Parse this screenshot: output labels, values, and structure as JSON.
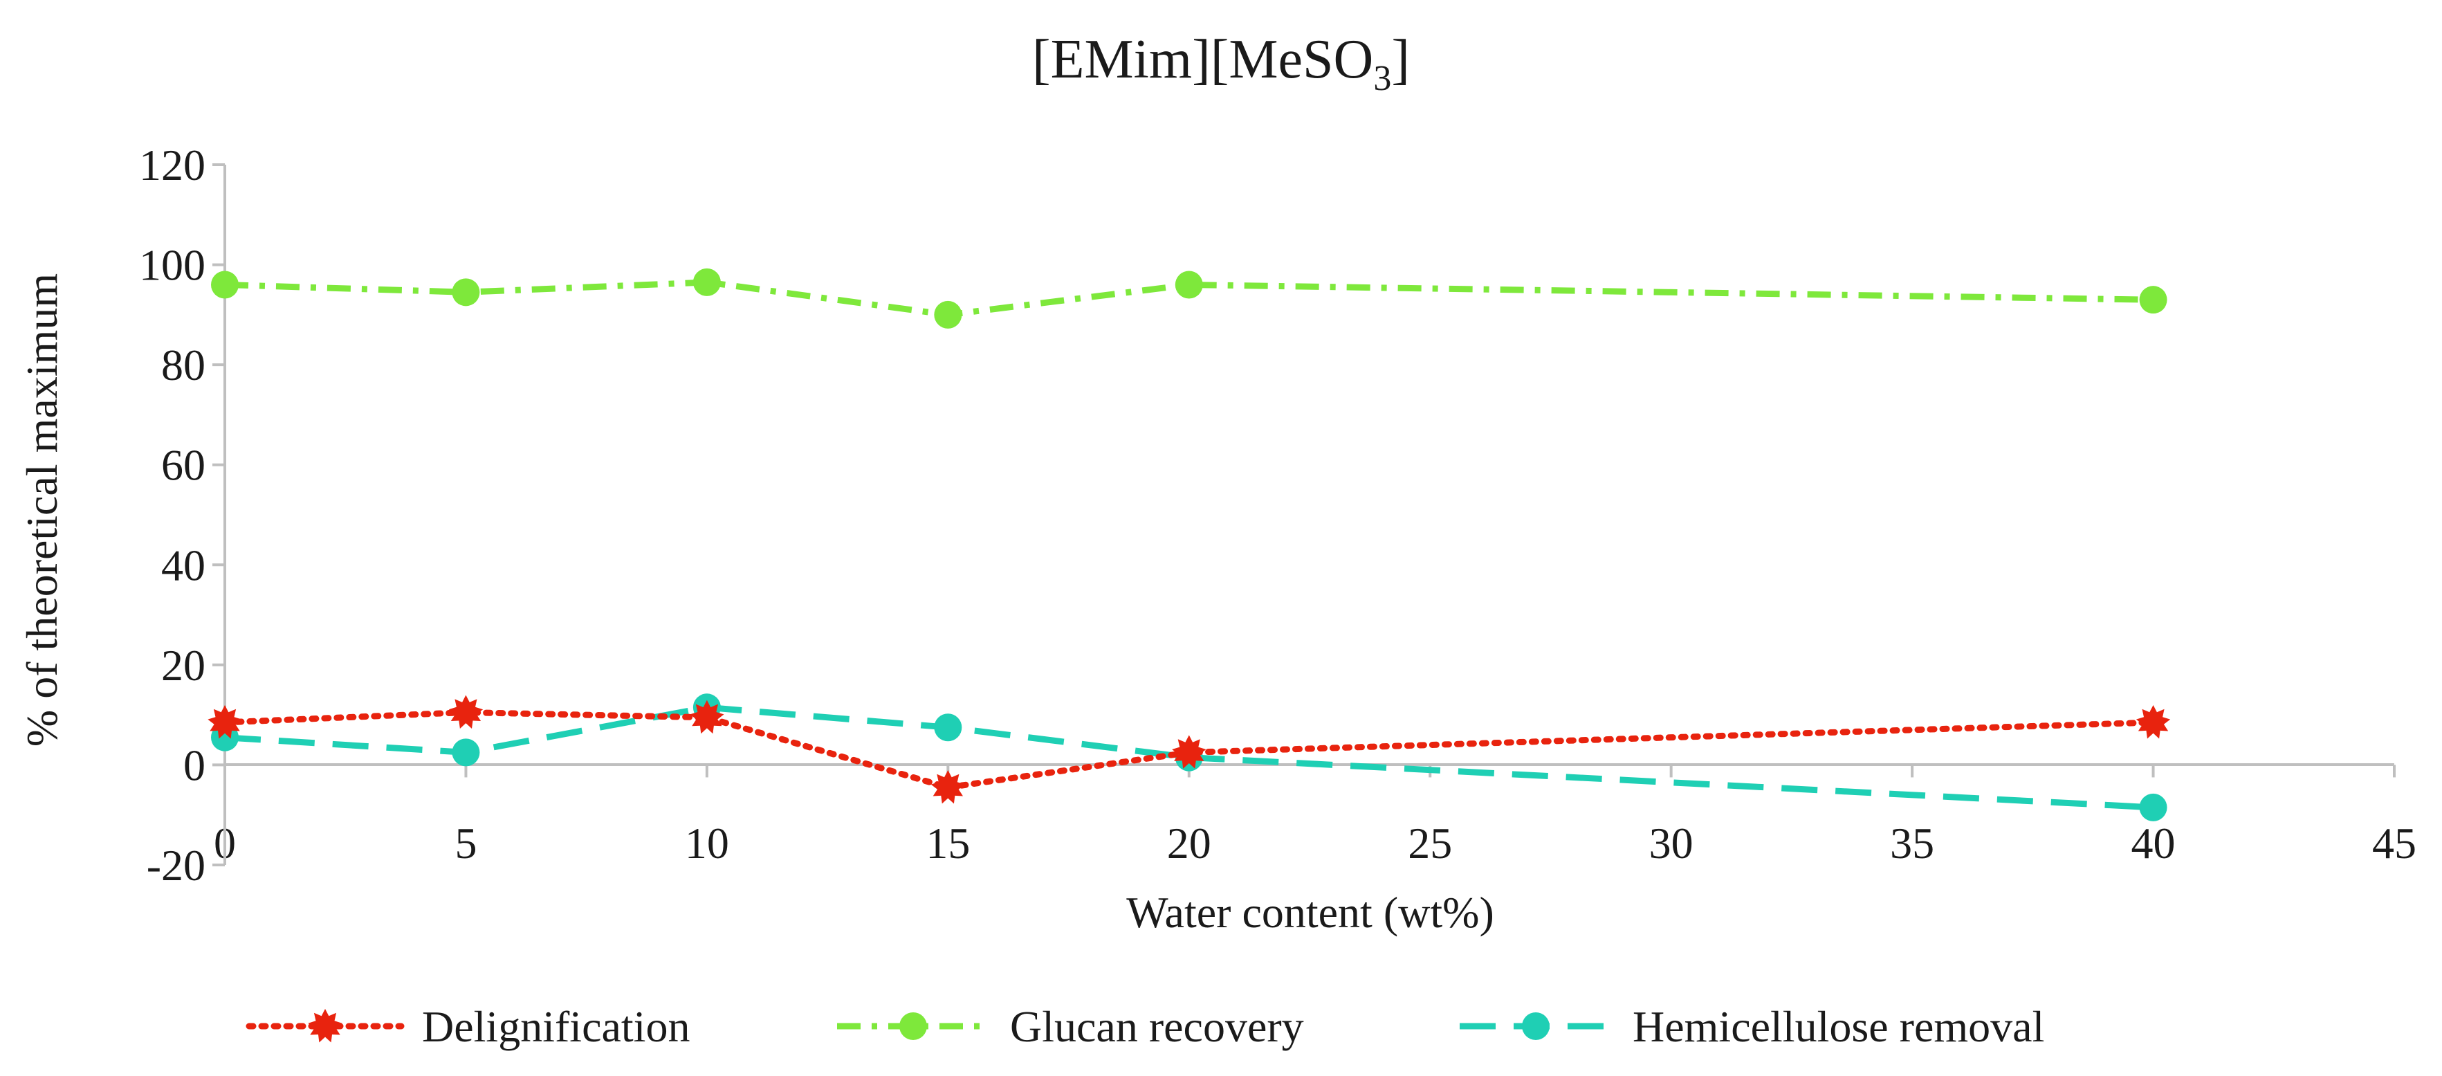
{
  "chart_data": {
    "type": "line",
    "title": "[EMim][MeSO",
    "title_subscript": "3",
    "title_suffix": "]",
    "xlabel": "Water content (wt%)",
    "ylabel": "% of theoretical maximum",
    "x": [
      0,
      5,
      10,
      15,
      20,
      40
    ],
    "xlim": [
      0,
      45
    ],
    "ylim": [
      -20,
      120
    ],
    "xticks": [
      "0",
      "5",
      "10",
      "15",
      "20",
      "25",
      "30",
      "35",
      "40",
      "45"
    ],
    "yticks": [
      "-20",
      "0",
      "20",
      "40",
      "60",
      "80",
      "100",
      "120"
    ],
    "grid": false,
    "legend_position": "bottom",
    "series": [
      {
        "name": "Delignification",
        "values": [
          8.5,
          10.5,
          9.5,
          -4.5,
          2.5,
          8.5
        ],
        "color": "#e8230e",
        "style": "dotted",
        "marker": "star"
      },
      {
        "name": "Glucan recovery",
        "values": [
          96,
          94.5,
          96.5,
          90,
          96,
          93
        ],
        "color": "#7ee83b",
        "style": "dash-dot",
        "marker": "circle"
      },
      {
        "name": "Hemicellulose removal",
        "values": [
          5.5,
          2.5,
          11.5,
          7.5,
          1.5,
          -8.5
        ],
        "color": "#1fcfb4",
        "style": "long-dash",
        "marker": "circle"
      }
    ]
  }
}
